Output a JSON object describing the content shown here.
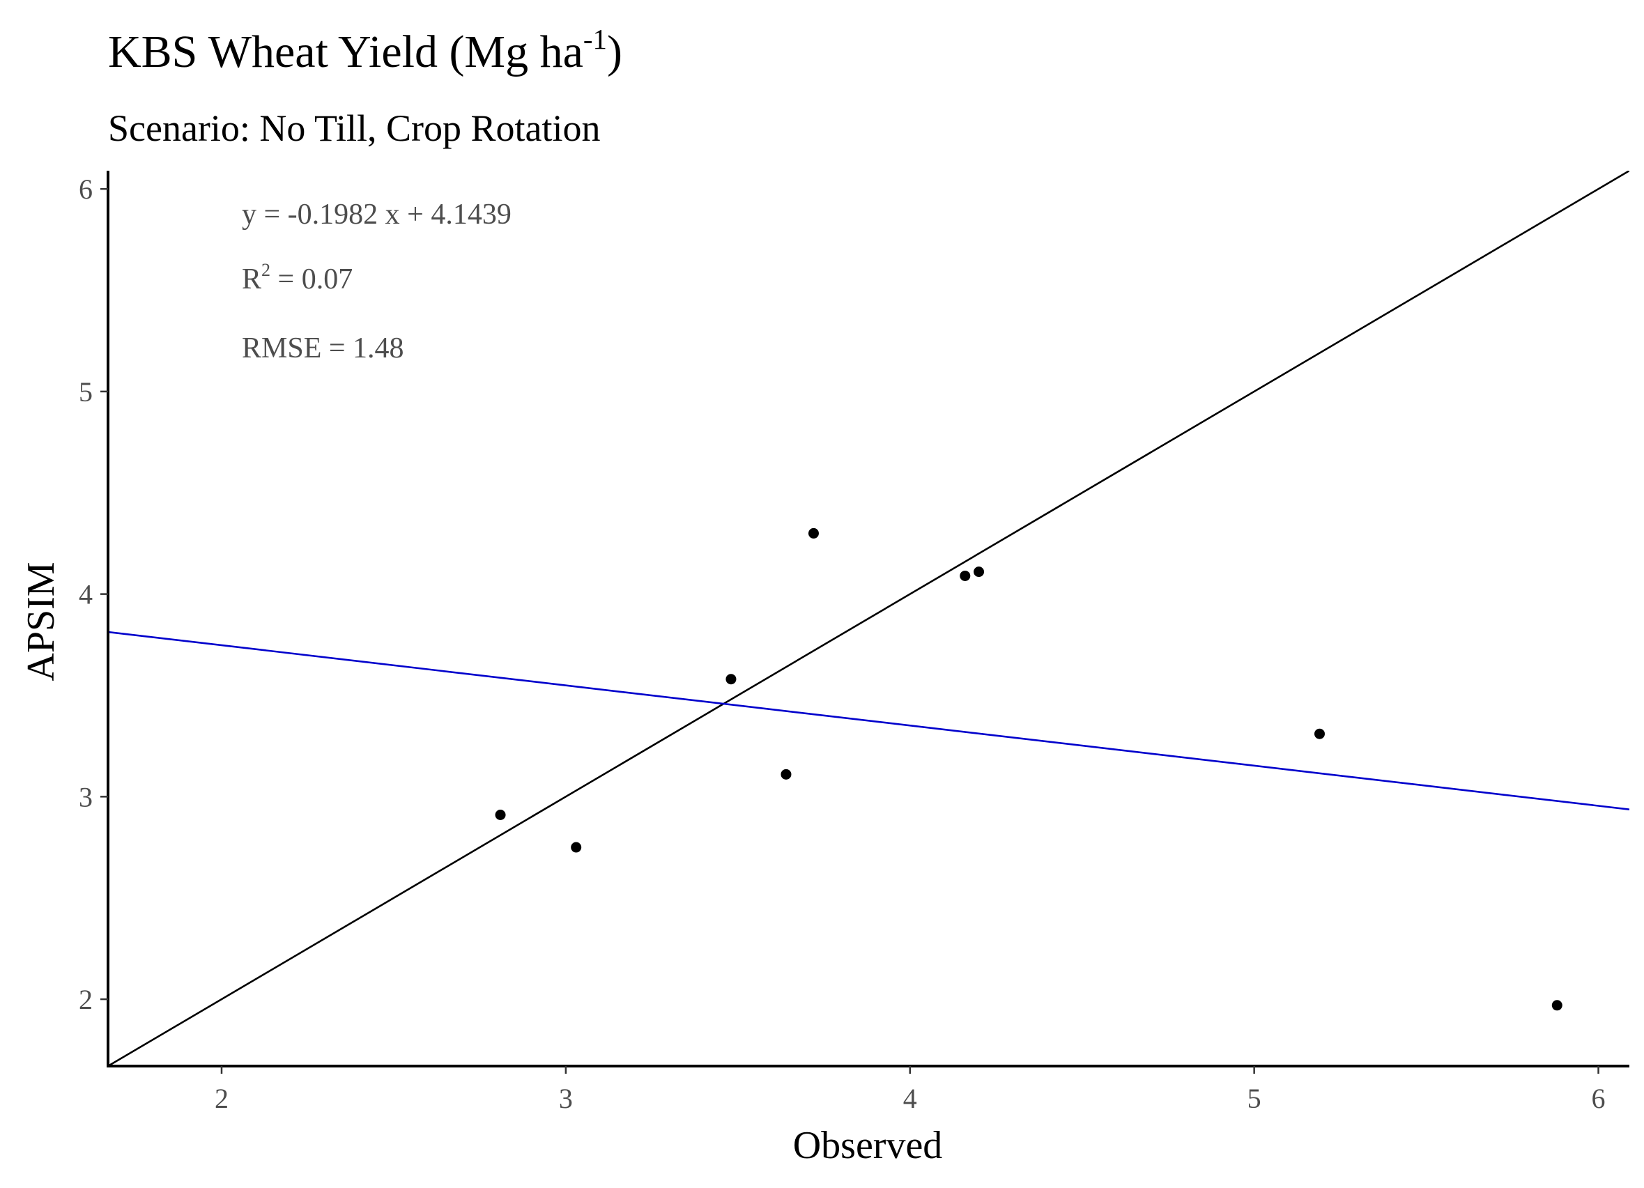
{
  "chart_data": {
    "type": "scatter",
    "title": {
      "main": "KBS Wheat Yield (Mg ha",
      "superscript": "-1",
      "close": ")"
    },
    "subtitle": "Scenario: No Till, Crop Rotation",
    "xlabel": "Observed",
    "ylabel": "APSIM",
    "xlim": [
      1.67,
      6.09
    ],
    "ylim": [
      1.67,
      6.09
    ],
    "x_ticks": [
      2,
      3,
      4,
      5,
      6
    ],
    "y_ticks": [
      2,
      3,
      4,
      5,
      6
    ],
    "grid": false,
    "points": [
      {
        "x": 2.81,
        "y": 2.91
      },
      {
        "x": 3.03,
        "y": 2.75
      },
      {
        "x": 3.48,
        "y": 3.58
      },
      {
        "x": 3.64,
        "y": 3.11
      },
      {
        "x": 3.72,
        "y": 4.3
      },
      {
        "x": 4.16,
        "y": 4.09
      },
      {
        "x": 4.2,
        "y": 4.11
      },
      {
        "x": 5.19,
        "y": 3.31
      },
      {
        "x": 5.88,
        "y": 1.97
      }
    ],
    "reference_line": {
      "type": "one-to-one",
      "slope": 1,
      "intercept": 0,
      "color": "#000000"
    },
    "regression_line": {
      "slope": -0.1982,
      "intercept": 4.1439,
      "color": "#0000cc"
    },
    "point_color": "#000000",
    "annotations": {
      "equation": "y = -0.1982 x + 4.1439",
      "r2_label": "R",
      "r2_superscript": "2",
      "r2_value": " = 0.07",
      "rmse": "RMSE = 1.48"
    }
  }
}
